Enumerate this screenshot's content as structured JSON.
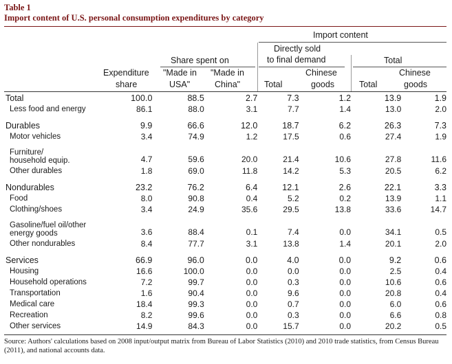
{
  "table_label": "Table 1",
  "title": "Import content of U.S. personal consumption expenditures by category",
  "headers": {
    "import_content": "Import content",
    "share_spent_on": "Share spent on",
    "directly_sold_line1": "Directly sold",
    "directly_sold_line2": "to final demand",
    "total_group": "Total",
    "expenditure_line1": "Expenditure",
    "expenditure_line2": "share",
    "usa_line1": "\"Made in",
    "usa_line2": "USA\"",
    "china_line1": "\"Made in",
    "china_line2": "China\"",
    "direct_total": "Total",
    "direct_chinese_line1": "Chinese",
    "direct_chinese_line2": "goods",
    "tot_total": "Total",
    "tot_chinese_line1": "Chinese",
    "tot_chinese_line2": "goods"
  },
  "rows": [
    {
      "label": "Total",
      "main": true,
      "values": [
        "100.0",
        "88.5",
        "2.7",
        "7.3",
        "1.2",
        "13.9",
        "1.9"
      ]
    },
    {
      "label": "Less food and energy",
      "values": [
        "86.1",
        "88.0",
        "3.1",
        "7.7",
        "1.4",
        "13.0",
        "2.0"
      ]
    },
    {
      "gap": true
    },
    {
      "label": "Durables",
      "main": true,
      "values": [
        "9.9",
        "66.6",
        "12.0",
        "18.7",
        "6.2",
        "26.3",
        "7.3"
      ]
    },
    {
      "label": "Motor vehicles",
      "values": [
        "3.4",
        "74.9",
        "1.2",
        "17.5",
        "0.6",
        "27.4",
        "1.9"
      ]
    },
    {
      "label": "Furniture/",
      "label2": "household equip.",
      "tall": true,
      "values": [
        "4.7",
        "59.6",
        "20.0",
        "21.4",
        "10.6",
        "27.8",
        "11.6"
      ]
    },
    {
      "label": "Other durables",
      "values": [
        "1.8",
        "69.0",
        "11.8",
        "14.2",
        "5.3",
        "20.5",
        "6.2"
      ]
    },
    {
      "gap": true
    },
    {
      "label": "Nondurables",
      "main": true,
      "values": [
        "23.2",
        "76.2",
        "6.4",
        "12.1",
        "2.6",
        "22.1",
        "3.3"
      ]
    },
    {
      "label": "Food",
      "values": [
        "8.0",
        "90.8",
        "0.4",
        "5.2",
        "0.2",
        "13.9",
        "1.1"
      ]
    },
    {
      "label": "Clothing/shoes",
      "values": [
        "3.4",
        "24.9",
        "35.6",
        "29.5",
        "13.8",
        "33.6",
        "14.7"
      ]
    },
    {
      "label": "Gasoline/fuel oil/other",
      "label2": "energy goods",
      "tall": true,
      "values": [
        "3.6",
        "88.4",
        "0.1",
        "7.4",
        "0.0",
        "34.1",
        "0.5"
      ]
    },
    {
      "label": "Other nondurables",
      "values": [
        "8.4",
        "77.7",
        "3.1",
        "13.8",
        "1.4",
        "20.1",
        "2.0"
      ]
    },
    {
      "gap": true
    },
    {
      "label": "Services",
      "main": true,
      "values": [
        "66.9",
        "96.0",
        "0.0",
        "4.0",
        "0.0",
        "9.2",
        "0.6"
      ]
    },
    {
      "label": "Housing",
      "values": [
        "16.6",
        "100.0",
        "0.0",
        "0.0",
        "0.0",
        "2.5",
        "0.4"
      ]
    },
    {
      "label": "Household operations",
      "values": [
        "7.2",
        "99.7",
        "0.0",
        "0.3",
        "0.0",
        "10.6",
        "0.6"
      ]
    },
    {
      "label": "Transportation",
      "values": [
        "1.6",
        "90.4",
        "0.0",
        "9.6",
        "0.0",
        "20.8",
        "0.4"
      ]
    },
    {
      "label": "Medical care",
      "values": [
        "18.4",
        "99.3",
        "0.0",
        "0.7",
        "0.0",
        "6.0",
        "0.6"
      ]
    },
    {
      "label": "Recreation",
      "values": [
        "8.2",
        "99.6",
        "0.0",
        "0.3",
        "0.0",
        "6.6",
        "0.8"
      ]
    },
    {
      "label": "Other services",
      "values": [
        "14.9",
        "84.3",
        "0.0",
        "15.7",
        "0.0",
        "20.2",
        "0.5"
      ]
    }
  ],
  "source": "Source: Authors' calculations based on 2008 input/output matrix from Bureau of Labor Statistics (2010) and 2010 trade statistics, from Census Bureau (2011), and national accounts data."
}
